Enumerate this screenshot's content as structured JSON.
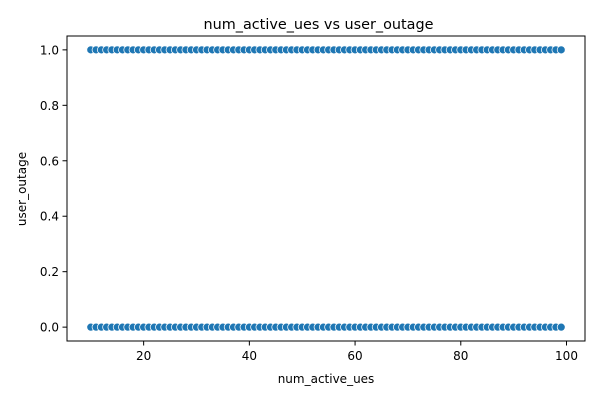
{
  "chart_data": {
    "type": "scatter",
    "title": "num_active_ues vs user_outage",
    "xlabel": "num_active_ues",
    "ylabel": "user_outage",
    "xlim": [
      5.5,
      103.5
    ],
    "ylim": [
      -0.05,
      1.05
    ],
    "xticks": [
      20,
      40,
      60,
      80,
      100
    ],
    "yticks": [
      0.0,
      0.2,
      0.4,
      0.6,
      0.8,
      1.0
    ],
    "xtick_labels": [
      "20",
      "40",
      "60",
      "80",
      "100"
    ],
    "ytick_labels": [
      "0.0",
      "0.2",
      "0.4",
      "0.6",
      "0.8",
      "1.0"
    ],
    "grid": false,
    "marker_color": "#1f77b4",
    "marker_edge_color": "#ffffff",
    "series": [
      {
        "x": [
          10,
          11,
          12,
          13,
          14,
          15,
          16,
          17,
          18,
          19,
          20,
          21,
          22,
          23,
          24,
          25,
          26,
          27,
          28,
          29,
          30,
          31,
          32,
          33,
          34,
          35,
          36,
          37,
          38,
          39,
          40,
          41,
          42,
          43,
          44,
          45,
          46,
          47,
          48,
          49,
          50,
          51,
          52,
          53,
          54,
          55,
          56,
          57,
          58,
          59,
          60,
          61,
          62,
          63,
          64,
          65,
          66,
          67,
          68,
          69,
          70,
          71,
          72,
          73,
          74,
          75,
          76,
          77,
          78,
          79,
          80,
          81,
          82,
          83,
          84,
          85,
          86,
          87,
          88,
          89,
          90,
          91,
          92,
          93,
          94,
          95,
          96,
          97,
          98,
          99,
          10,
          11,
          12,
          13,
          14,
          15,
          16,
          17,
          18,
          19,
          20,
          21,
          22,
          23,
          24,
          25,
          26,
          27,
          28,
          29,
          30,
          31,
          32,
          33,
          34,
          35,
          36,
          37,
          38,
          39,
          40,
          41,
          42,
          43,
          44,
          45,
          46,
          47,
          48,
          49,
          50,
          51,
          52,
          53,
          54,
          55,
          56,
          57,
          58,
          59,
          60,
          61,
          62,
          63,
          64,
          65,
          66,
          67,
          68,
          69,
          70,
          71,
          72,
          73,
          74,
          75,
          76,
          77,
          78,
          79,
          80,
          81,
          82,
          83,
          84,
          85,
          86,
          87,
          88,
          89,
          90,
          91,
          92,
          93,
          94,
          95,
          96,
          97,
          98,
          99
        ],
        "y": [
          1,
          1,
          1,
          1,
          1,
          1,
          1,
          1,
          1,
          1,
          1,
          1,
          1,
          1,
          1,
          1,
          1,
          1,
          1,
          1,
          1,
          1,
          1,
          1,
          1,
          1,
          1,
          1,
          1,
          1,
          1,
          1,
          1,
          1,
          1,
          1,
          1,
          1,
          1,
          1,
          1,
          1,
          1,
          1,
          1,
          1,
          1,
          1,
          1,
          1,
          1,
          1,
          1,
          1,
          1,
          1,
          1,
          1,
          1,
          1,
          1,
          1,
          1,
          1,
          1,
          1,
          1,
          1,
          1,
          1,
          1,
          1,
          1,
          1,
          1,
          1,
          1,
          1,
          1,
          1,
          1,
          1,
          1,
          1,
          1,
          1,
          1,
          1,
          1,
          1,
          0,
          0,
          0,
          0,
          0,
          0,
          0,
          0,
          0,
          0,
          0,
          0,
          0,
          0,
          0,
          0,
          0,
          0,
          0,
          0,
          0,
          0,
          0,
          0,
          0,
          0,
          0,
          0,
          0,
          0,
          0,
          0,
          0,
          0,
          0,
          0,
          0,
          0,
          0,
          0,
          0,
          0,
          0,
          0,
          0,
          0,
          0,
          0,
          0,
          0,
          0,
          0,
          0,
          0,
          0,
          0,
          0,
          0,
          0,
          0,
          0,
          0,
          0,
          0,
          0,
          0,
          0,
          0,
          0,
          0,
          0,
          0,
          0,
          0,
          0,
          0,
          0,
          0,
          0,
          0,
          0,
          0,
          0,
          0,
          0,
          0,
          0,
          0,
          0,
          0
        ]
      }
    ]
  }
}
